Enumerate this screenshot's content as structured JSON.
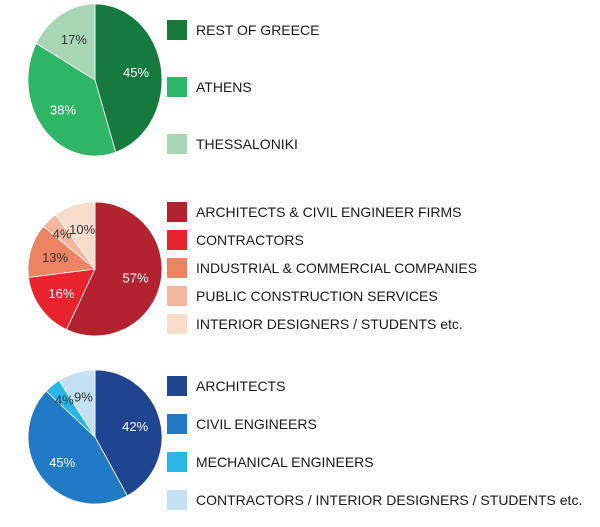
{
  "chart_data": [
    {
      "type": "pie",
      "slices": [
        {
          "label": "REST OF GREECE",
          "value": 45,
          "display": "45%",
          "color": "#167a3f",
          "text_color": "#ffffff"
        },
        {
          "label": "ATHENS",
          "value": 38,
          "display": "38%",
          "color": "#2eb565",
          "text_color": "#ffffff"
        },
        {
          "label": "THESSALONIKI",
          "value": 17,
          "display": "17%",
          "color": "#a6d6b4",
          "text_color": "#333333"
        }
      ]
    },
    {
      "type": "pie",
      "slices": [
        {
          "label": "ARCHITECTS & CIVIL ENGINEER FIRMS",
          "value": 57,
          "display": "57%",
          "color": "#b3232f",
          "text_color": "#ffffff"
        },
        {
          "label": "CONTRACTORS",
          "value": 16,
          "display": "16%",
          "color": "#e7242e",
          "text_color": "#ffffff"
        },
        {
          "label": "INDUSTRIAL & COMMERCIAL COMPANIES",
          "value": 13,
          "display": "13%",
          "color": "#ec8464",
          "text_color": "#333333"
        },
        {
          "label": "PUBLIC CONSTRUCTION SERVICES",
          "value": 4,
          "display": "4%",
          "color": "#f4b69c",
          "text_color": "#333333"
        },
        {
          "label": "INTERIOR DESIGNERS / STUDENTS etc.",
          "value": 10,
          "display": "10%",
          "color": "#fadccd",
          "text_color": "#333333"
        }
      ]
    },
    {
      "type": "pie",
      "slices": [
        {
          "label": "ARCHITECTS",
          "value": 42,
          "display": "42%",
          "color": "#1f4590",
          "text_color": "#ffffff"
        },
        {
          "label": "CIVIL ENGINEERS",
          "value": 45,
          "display": "45%",
          "color": "#2279c4",
          "text_color": "#ffffff"
        },
        {
          "label": "MECHANICAL ENGINEERS",
          "value": 4,
          "display": "4%",
          "color": "#29b7e9",
          "text_color": "#333333"
        },
        {
          "label": "CONTRACTORS / INTERIOR DESIGNERS / STUDENTS etc.",
          "value": 9,
          "display": "9%",
          "color": "#c4e1f4",
          "text_color": "#333333"
        }
      ]
    }
  ]
}
